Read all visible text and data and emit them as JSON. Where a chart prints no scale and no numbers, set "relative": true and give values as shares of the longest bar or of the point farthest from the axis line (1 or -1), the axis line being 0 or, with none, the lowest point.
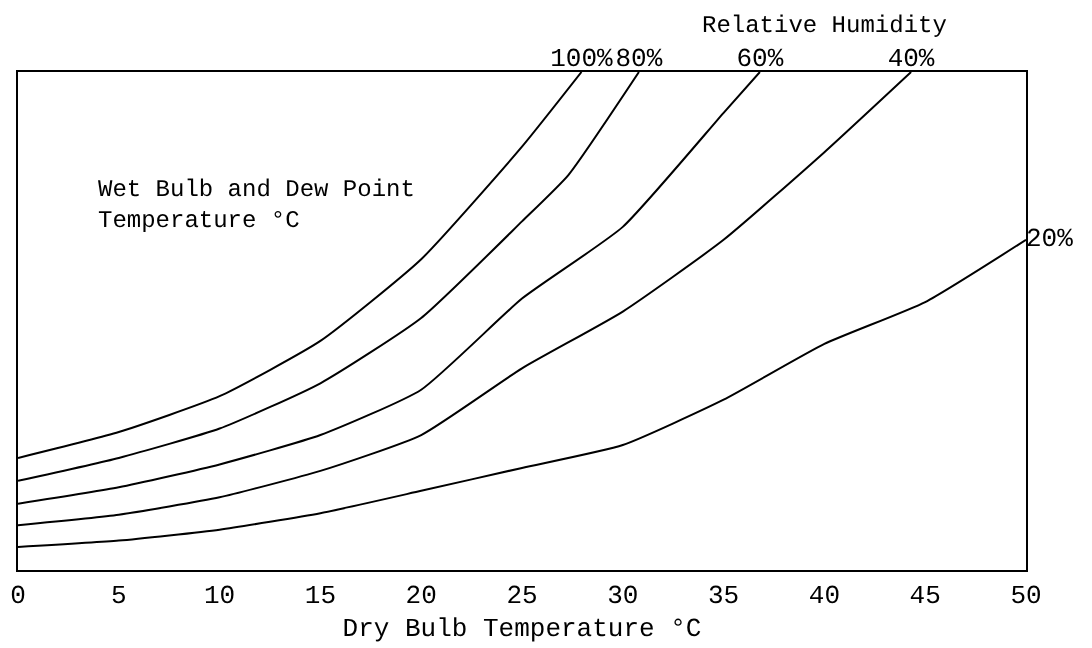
{
  "chart_data": {
    "type": "line",
    "relative": true,
    "xlabel": "Dry Bulb Temperature °C",
    "annotations": [
      "Relative Humidity",
      "Wet Bulb and Dew Point\nTemperature °C"
    ],
    "xlim": [
      0,
      50
    ],
    "xticks": [
      0,
      5,
      10,
      15,
      20,
      25,
      30,
      35,
      40,
      45,
      50
    ],
    "legend": false,
    "marker": "none",
    "line_style": "solid",
    "series": [
      {
        "name": "100%",
        "color": "#000000",
        "x": [
          0,
          5,
          10,
          15,
          20,
          25,
          27.95
        ],
        "values": [
          0.225,
          0.277,
          0.349,
          0.46,
          0.624,
          0.85,
          1.0
        ]
      },
      {
        "name": "80%",
        "color": "#000000",
        "x": [
          0,
          5,
          10,
          15,
          20,
          25,
          27.3,
          30.8
        ],
        "values": [
          0.179,
          0.225,
          0.284,
          0.375,
          0.506,
          0.7,
          0.793,
          1.0
        ]
      },
      {
        "name": "60%",
        "color": "#000000",
        "x": [
          0,
          5,
          10,
          15,
          20,
          25,
          30,
          35,
          36.8
        ],
        "values": [
          0.133,
          0.166,
          0.212,
          0.271,
          0.362,
          0.545,
          0.689,
          0.918,
          1.0
        ]
      },
      {
        "name": "40%",
        "color": "#000000",
        "x": [
          0,
          5,
          10,
          15,
          20,
          25,
          30,
          35,
          40,
          44.3
        ],
        "values": [
          0.09,
          0.111,
          0.146,
          0.199,
          0.271,
          0.405,
          0.519,
          0.663,
          0.839,
          1.0
        ]
      },
      {
        "name": "20%",
        "color": "#000000",
        "x": [
          0,
          5,
          10,
          15,
          20,
          25,
          30,
          35,
          40,
          45,
          50
        ],
        "values": [
          0.046,
          0.059,
          0.081,
          0.114,
          0.159,
          0.205,
          0.251,
          0.342,
          0.454,
          0.538,
          0.663
        ]
      }
    ]
  }
}
